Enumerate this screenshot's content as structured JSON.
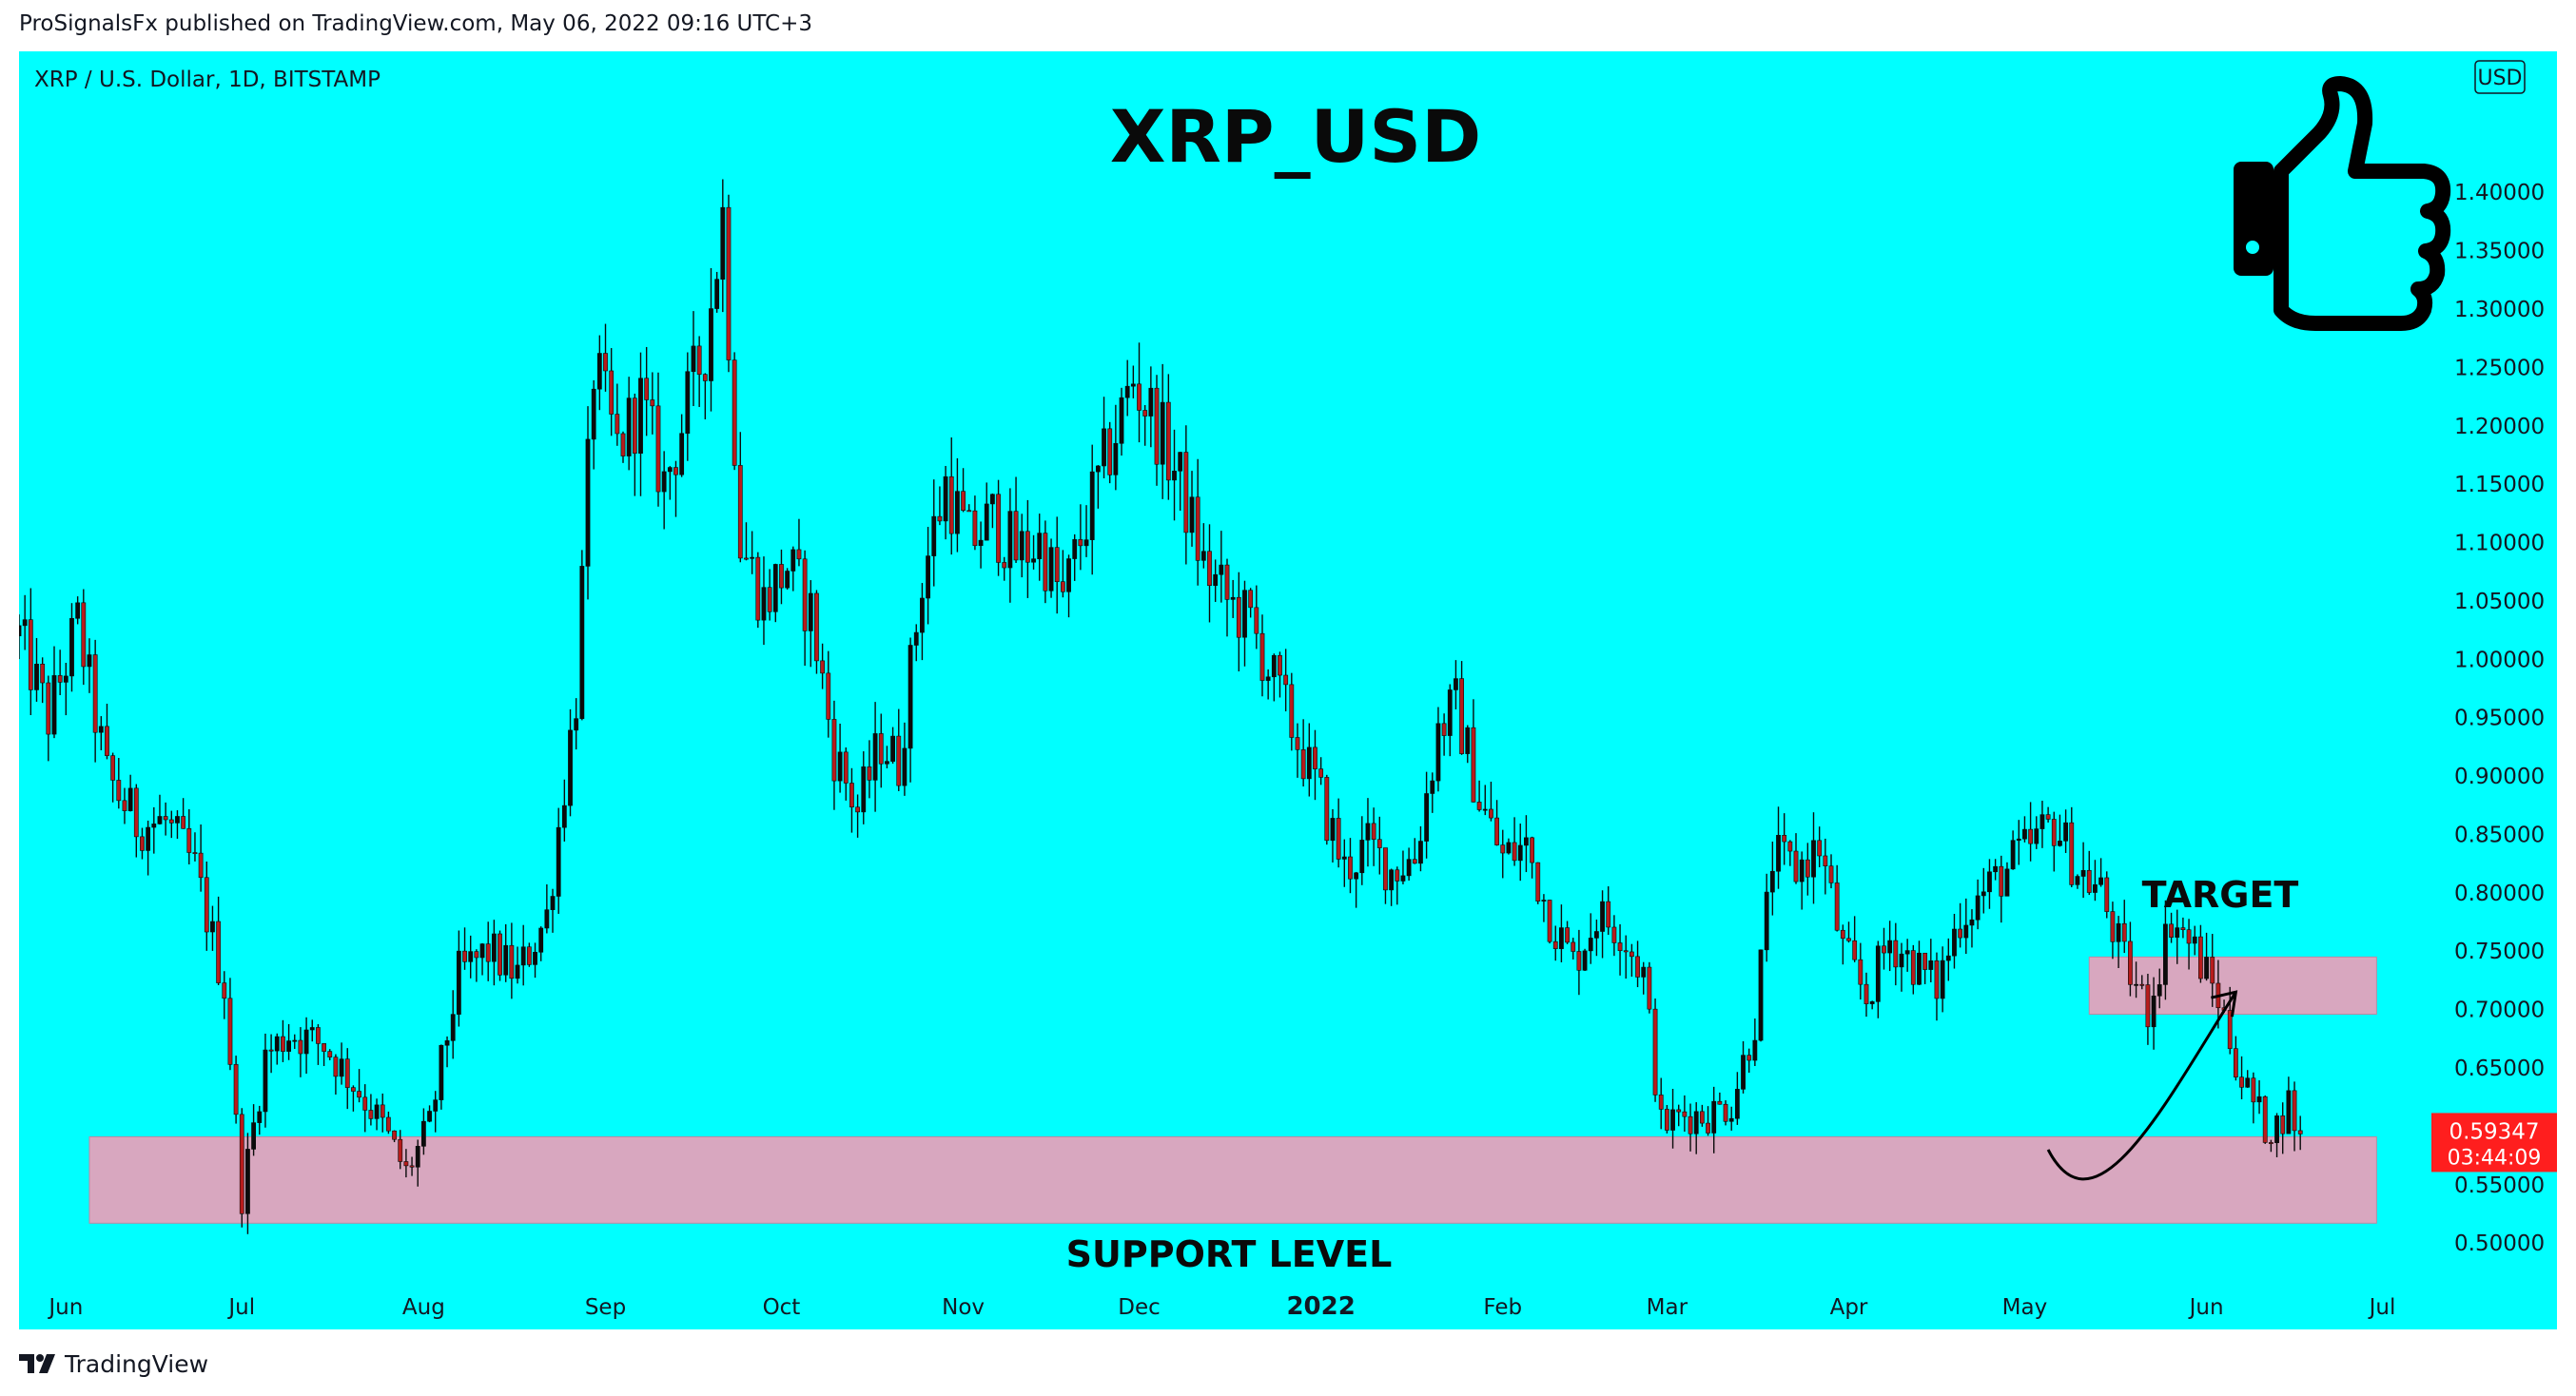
{
  "header": {
    "published_line": "ProSignalsFx published on TradingView.com, May 06, 2022 09:16 UTC+3"
  },
  "footer": {
    "brand": "TradingView",
    "logo_icon": "tradingview-logo-icon"
  },
  "chart_data": {
    "type": "candlestick",
    "symbol_line": "XRP / U.S. Dollar, 1D, BITSTAMP",
    "title": "XRP_USD",
    "currency_badge": "USD",
    "background_color": "#00ffff",
    "up_color": "#0b0b0b",
    "down_color": "#b71c1c",
    "ylim": [
      0.47,
      1.48
    ],
    "y_ticks": [
      "0.50000",
      "0.55000",
      "0.60000",
      "0.65000",
      "0.70000",
      "0.75000",
      "0.80000",
      "0.85000",
      "0.90000",
      "0.95000",
      "1.00000",
      "1.05000",
      "1.10000",
      "1.15000",
      "1.20000",
      "1.25000",
      "1.30000",
      "1.35000",
      "1.40000"
    ],
    "y_ticks_values": [
      0.5,
      0.55,
      0.6,
      0.65,
      0.7,
      0.75,
      0.8,
      0.85,
      0.9,
      0.95,
      1.0,
      1.05,
      1.1,
      1.15,
      1.2,
      1.25,
      1.3,
      1.35,
      1.4
    ],
    "x_range": [
      "2021-05-24",
      "2022-07-10"
    ],
    "x_ticks": [
      {
        "label": "Jun",
        "date": "2021-06-01"
      },
      {
        "label": "Jul",
        "date": "2021-07-01"
      },
      {
        "label": "Aug",
        "date": "2021-08-01"
      },
      {
        "label": "Sep",
        "date": "2021-09-01"
      },
      {
        "label": "Oct",
        "date": "2021-10-01"
      },
      {
        "label": "Nov",
        "date": "2021-11-01"
      },
      {
        "label": "Dec",
        "date": "2021-12-01"
      },
      {
        "label": "2022",
        "date": "2022-01-01",
        "bold": true
      },
      {
        "label": "Feb",
        "date": "2022-02-01"
      },
      {
        "label": "Mar",
        "date": "2022-03-01"
      },
      {
        "label": "Apr",
        "date": "2022-04-01"
      },
      {
        "label": "May",
        "date": "2022-05-01"
      },
      {
        "label": "Jun",
        "date": "2022-06-01"
      },
      {
        "label": "Jul",
        "date": "2022-07-01"
      }
    ],
    "price_path_start": "2021-05-24",
    "price_path": [
      [
        0,
        1.02
      ],
      [
        5,
        0.95
      ],
      [
        10,
        1.03
      ],
      [
        15,
        0.9
      ],
      [
        20,
        0.86
      ],
      [
        25,
        0.86
      ],
      [
        30,
        0.82
      ],
      [
        35,
        0.72
      ],
      [
        38,
        0.54
      ],
      [
        42,
        0.66
      ],
      [
        46,
        0.68
      ],
      [
        52,
        0.67
      ],
      [
        58,
        0.63
      ],
      [
        62,
        0.6
      ],
      [
        66,
        0.56
      ],
      [
        70,
        0.6
      ],
      [
        75,
        0.73
      ],
      [
        80,
        0.75
      ],
      [
        85,
        0.73
      ],
      [
        90,
        0.78
      ],
      [
        95,
        0.97
      ],
      [
        98,
        1.25
      ],
      [
        102,
        1.18
      ],
      [
        106,
        1.22
      ],
      [
        110,
        1.15
      ],
      [
        113,
        1.2
      ],
      [
        117,
        1.27
      ],
      [
        120,
        1.38
      ],
      [
        123,
        1.1
      ],
      [
        127,
        1.05
      ],
      [
        131,
        1.08
      ],
      [
        135,
        1.04
      ],
      [
        139,
        0.92
      ],
      [
        143,
        0.87
      ],
      [
        147,
        0.93
      ],
      [
        150,
        0.91
      ],
      [
        154,
        1.07
      ],
      [
        158,
        1.15
      ],
      [
        162,
        1.1
      ],
      [
        166,
        1.12
      ],
      [
        170,
        1.09
      ],
      [
        174,
        1.1
      ],
      [
        178,
        1.05
      ],
      [
        182,
        1.12
      ],
      [
        186,
        1.18
      ],
      [
        190,
        1.24
      ],
      [
        194,
        1.2
      ],
      [
        198,
        1.15
      ],
      [
        202,
        1.08
      ],
      [
        206,
        1.05
      ],
      [
        210,
        1.03
      ],
      [
        214,
        0.98
      ],
      [
        218,
        0.93
      ],
      [
        222,
        0.88
      ],
      [
        226,
        0.82
      ],
      [
        230,
        0.84
      ],
      [
        234,
        0.82
      ],
      [
        238,
        0.83
      ],
      [
        242,
        0.94
      ],
      [
        245,
        0.96
      ],
      [
        249,
        0.88
      ],
      [
        253,
        0.83
      ],
      [
        257,
        0.84
      ],
      [
        261,
        0.78
      ],
      [
        265,
        0.74
      ],
      [
        269,
        0.78
      ],
      [
        273,
        0.77
      ],
      [
        277,
        0.73
      ],
      [
        280,
        0.6
      ],
      [
        284,
        0.61
      ],
      [
        288,
        0.61
      ],
      [
        292,
        0.62
      ],
      [
        296,
        0.69
      ],
      [
        299,
        0.83
      ],
      [
        303,
        0.82
      ],
      [
        307,
        0.84
      ],
      [
        311,
        0.75
      ],
      [
        315,
        0.71
      ],
      [
        319,
        0.76
      ],
      [
        323,
        0.74
      ],
      [
        327,
        0.72
      ],
      [
        331,
        0.78
      ],
      [
        335,
        0.8
      ],
      [
        339,
        0.82
      ],
      [
        343,
        0.84
      ],
      [
        347,
        0.86
      ],
      [
        351,
        0.82
      ],
      [
        355,
        0.8
      ],
      [
        359,
        0.74
      ],
      [
        363,
        0.7
      ],
      [
        367,
        0.78
      ],
      [
        371,
        0.75
      ],
      [
        375,
        0.71
      ],
      [
        379,
        0.64
      ],
      [
        383,
        0.6
      ],
      [
        385,
        0.6
      ],
      [
        387,
        0.62
      ],
      [
        389,
        0.59
      ]
    ],
    "last_price": "0.59347",
    "countdown": "03:44:09",
    "zones": [
      {
        "name": "support",
        "label": "SUPPORT LEVEL",
        "y_from": 0.517,
        "y_to": 0.591,
        "x_from": "2021-06-05",
        "x_to": "2022-06-30",
        "color": "#d8a7bf"
      },
      {
        "name": "target",
        "label": "TARGET",
        "y_from": 0.696,
        "y_to": 0.745,
        "x_from": "2022-05-12",
        "x_to": "2022-06-30",
        "color": "#d8a7bf"
      }
    ],
    "projection_arrow": {
      "points": [
        [
          "2022-05-05",
          0.58
        ],
        [
          "2022-05-13",
          0.535
        ],
        [
          "2022-05-25",
          0.62
        ],
        [
          "2022-06-06",
          0.715
        ]
      ]
    },
    "decoration_icon": "thumbs-up-icon"
  }
}
